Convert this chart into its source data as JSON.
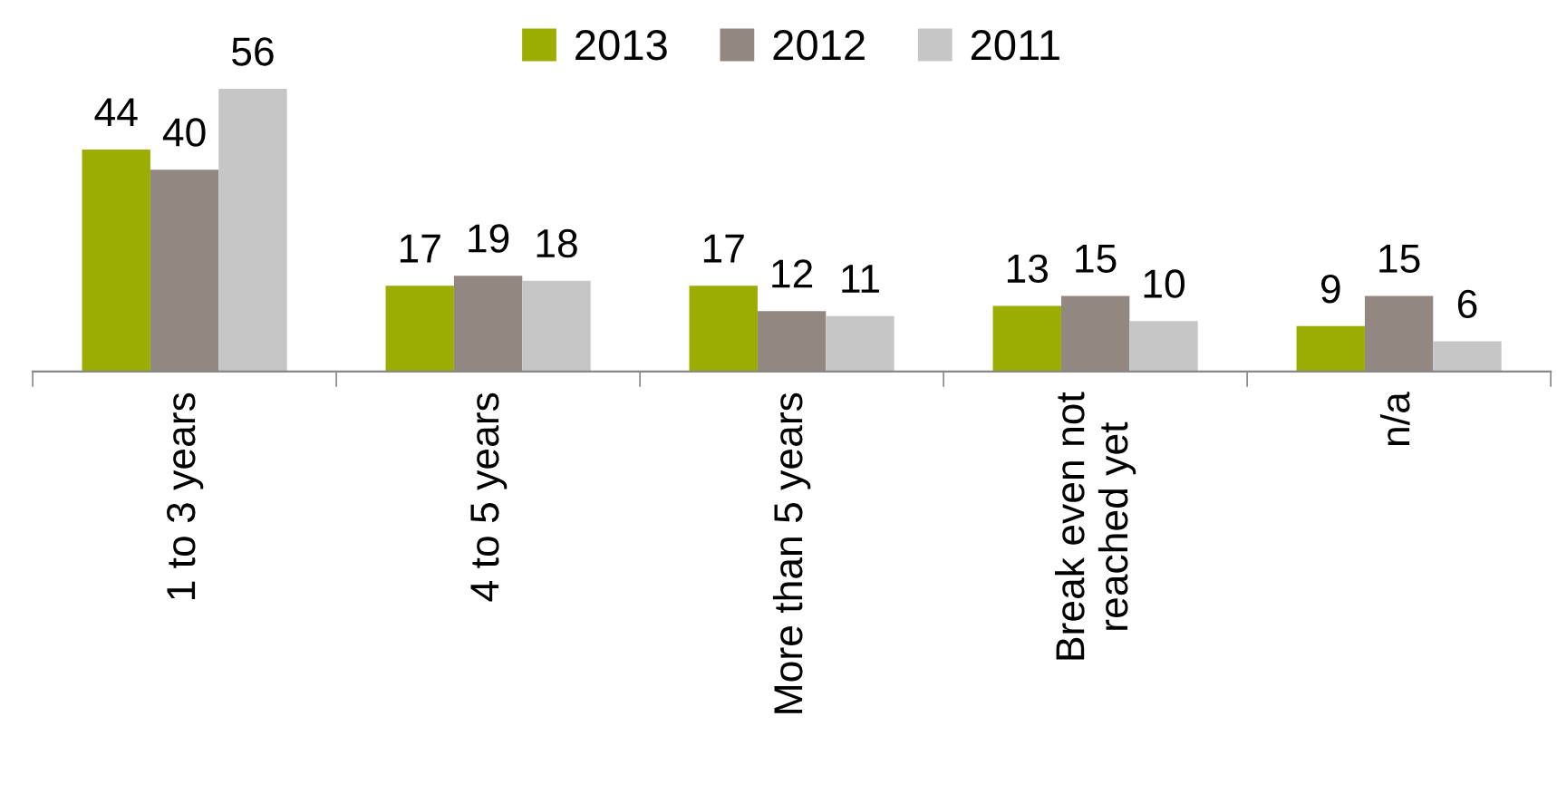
{
  "chart_data": {
    "type": "bar",
    "categories": [
      "1 to 3 years",
      "4 to 5 years",
      "More than 5 years",
      "Break even not\nreached yet",
      "n/a"
    ],
    "series": [
      {
        "name": "2013",
        "color": "#9aad00",
        "values": [
          44,
          17,
          17,
          13,
          9
        ]
      },
      {
        "name": "2012",
        "color": "#938782",
        "values": [
          40,
          19,
          12,
          15,
          15
        ]
      },
      {
        "name": "2011",
        "color": "#c6c6c6",
        "values": [
          56,
          18,
          11,
          10,
          6
        ]
      }
    ],
    "data_labels": true,
    "legend": "top",
    "grid": false
  }
}
